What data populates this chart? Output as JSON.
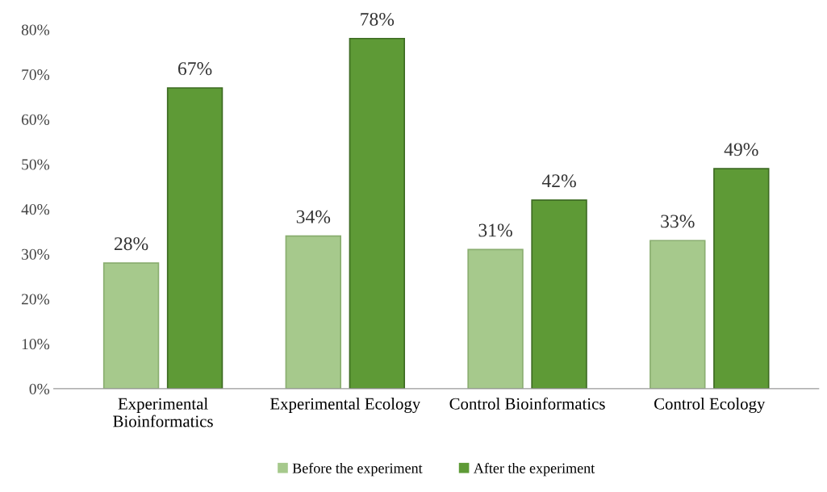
{
  "chart_data": {
    "type": "bar",
    "categories": [
      "Experimental\nBioinformatics",
      "Experimental Ecology",
      "Control Bioinformatics",
      "Control Ecology"
    ],
    "series": [
      {
        "name": "Before the experiment",
        "color": "#a6c98c",
        "values": [
          28,
          34,
          31,
          33
        ],
        "value_labels": [
          "28%",
          "34%",
          "31%",
          "33%"
        ]
      },
      {
        "name": "After the experiment",
        "color": "#5e9a36",
        "values": [
          67,
          78,
          42,
          49
        ],
        "value_labels": [
          "67%",
          "78%",
          "42%",
          "49%"
        ]
      }
    ],
    "ylim": [
      0,
      80
    ],
    "yticks": [
      {
        "value": 0,
        "label": "0%"
      },
      {
        "value": 10,
        "label": "10%"
      },
      {
        "value": 20,
        "label": "20%"
      },
      {
        "value": 30,
        "label": "30%"
      },
      {
        "value": 40,
        "label": "40%"
      },
      {
        "value": 50,
        "label": "50%"
      },
      {
        "value": 60,
        "label": "60%"
      },
      {
        "value": 70,
        "label": "70%"
      },
      {
        "value": 80,
        "label": "80%"
      }
    ],
    "grid": false,
    "legend": "bottom"
  }
}
